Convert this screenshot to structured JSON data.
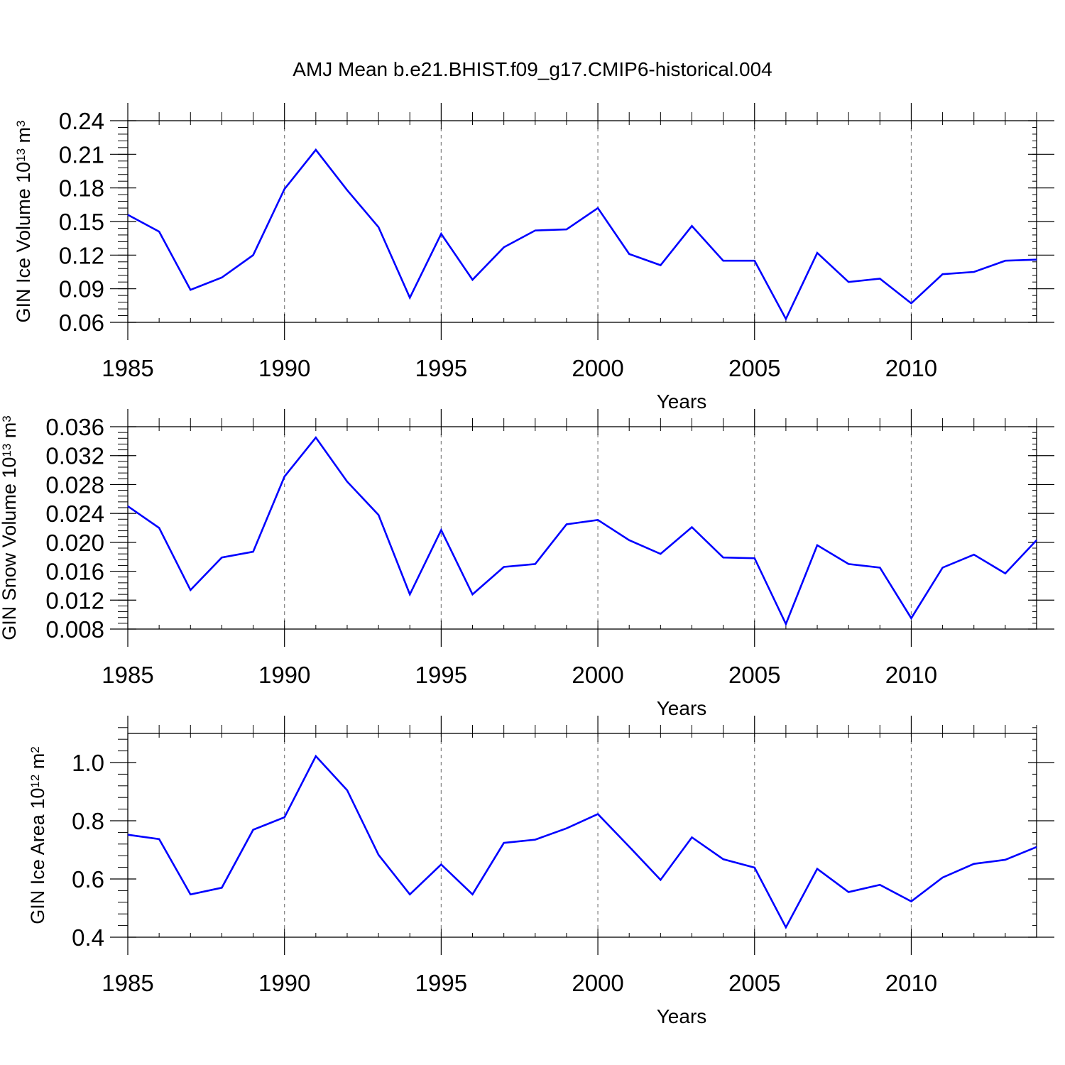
{
  "figure_title": "AMJ Mean b.e21.BHIST.f09_g17.CMIP6-historical.004",
  "chart_data": [
    {
      "type": "line",
      "title": "",
      "xlabel": "Years",
      "ylabel": "GIN Ice Volume 10",
      "ylabel_sup": "13",
      "ylabel_unit": " m",
      "ylabel_unit_sup": "3",
      "x": [
        1985,
        1986,
        1987,
        1988,
        1989,
        1990,
        1991,
        1992,
        1993,
        1994,
        1995,
        1996,
        1997,
        1998,
        1999,
        2000,
        2001,
        2002,
        2003,
        2004,
        2005,
        2006,
        2007,
        2008,
        2009,
        2010,
        2011,
        2012,
        2013,
        2014
      ],
      "xlim": [
        1985,
        2014
      ],
      "xticks": [
        1985,
        1990,
        1995,
        2000,
        2005,
        2010
      ],
      "ylim": [
        0.06,
        0.24
      ],
      "yticks": [
        0.06,
        0.09,
        0.12,
        0.15,
        0.18,
        0.21,
        0.24
      ],
      "ytick_labels": [
        "0.06",
        "0.09",
        "0.12",
        "0.15",
        "0.18",
        "0.21",
        "0.24"
      ],
      "yminor_step": 0.006,
      "series": [
        {
          "name": "GIN Ice Volume",
          "color": "#0000ff",
          "values": [
            0.156,
            0.141,
            0.089,
            0.1,
            0.12,
            0.179,
            0.214,
            0.178,
            0.145,
            0.082,
            0.139,
            0.098,
            0.127,
            0.142,
            0.143,
            0.162,
            0.121,
            0.111,
            0.146,
            0.115,
            0.115,
            0.063,
            0.122,
            0.096,
            0.099,
            0.077,
            0.103,
            0.105,
            0.115,
            0.116
          ]
        }
      ]
    },
    {
      "type": "line",
      "title": "",
      "xlabel": "Years",
      "ylabel": "GIN Snow Volume 10",
      "ylabel_sup": "13",
      "ylabel_unit": " m",
      "ylabel_unit_sup": "3",
      "x": [
        1985,
        1986,
        1987,
        1988,
        1989,
        1990,
        1991,
        1992,
        1993,
        1994,
        1995,
        1996,
        1997,
        1998,
        1999,
        2000,
        2001,
        2002,
        2003,
        2004,
        2005,
        2006,
        2007,
        2008,
        2009,
        2010,
        2011,
        2012,
        2013,
        2014
      ],
      "xlim": [
        1985,
        2014
      ],
      "xticks": [
        1985,
        1990,
        1995,
        2000,
        2005,
        2010
      ],
      "ylim": [
        0.008,
        0.036
      ],
      "yticks": [
        0.008,
        0.012,
        0.016,
        0.02,
        0.024,
        0.028,
        0.032,
        0.036
      ],
      "ytick_labels": [
        "0.008",
        "0.012",
        "0.016",
        "0.020",
        "0.024",
        "0.028",
        "0.032",
        "0.036"
      ],
      "yminor_step": 0.0008,
      "series": [
        {
          "name": "GIN Snow Volume",
          "color": "#0000ff",
          "values": [
            0.025,
            0.022,
            0.0134,
            0.0179,
            0.0187,
            0.0291,
            0.0345,
            0.0284,
            0.0238,
            0.0128,
            0.0217,
            0.0128,
            0.0166,
            0.017,
            0.0225,
            0.0231,
            0.0203,
            0.0184,
            0.0221,
            0.0179,
            0.0178,
            0.0087,
            0.0196,
            0.017,
            0.0165,
            0.0095,
            0.0165,
            0.0183,
            0.0157,
            0.0203
          ]
        }
      ]
    },
    {
      "type": "line",
      "title": "",
      "xlabel": "Years",
      "ylabel": "GIN Ice Area 10",
      "ylabel_sup": "12",
      "ylabel_unit": " m",
      "ylabel_unit_sup": "2",
      "x": [
        1985,
        1986,
        1987,
        1988,
        1989,
        1990,
        1991,
        1992,
        1993,
        1994,
        1995,
        1996,
        1997,
        1998,
        1999,
        2000,
        2001,
        2002,
        2003,
        2004,
        2005,
        2006,
        2007,
        2008,
        2009,
        2010,
        2011,
        2012,
        2013,
        2014
      ],
      "xlim": [
        1985,
        2014
      ],
      "xticks": [
        1985,
        1990,
        1995,
        2000,
        2005,
        2010
      ],
      "ylim": [
        0.4,
        1.1
      ],
      "yticks": [
        0.4,
        0.6,
        0.8,
        1.0
      ],
      "ytick_labels": [
        "0.4",
        "0.6",
        "0.8",
        "1.0"
      ],
      "yminor_step": 0.04,
      "series": [
        {
          "name": "GIN Ice Area",
          "color": "#0000ff",
          "values": [
            0.752,
            0.737,
            0.547,
            0.57,
            0.769,
            0.812,
            1.022,
            0.905,
            0.683,
            0.547,
            0.65,
            0.547,
            0.724,
            0.735,
            0.774,
            0.823,
            0.711,
            0.597,
            0.743,
            0.668,
            0.639,
            0.434,
            0.635,
            0.555,
            0.58,
            0.523,
            0.605,
            0.652,
            0.666,
            0.71
          ]
        }
      ]
    }
  ]
}
